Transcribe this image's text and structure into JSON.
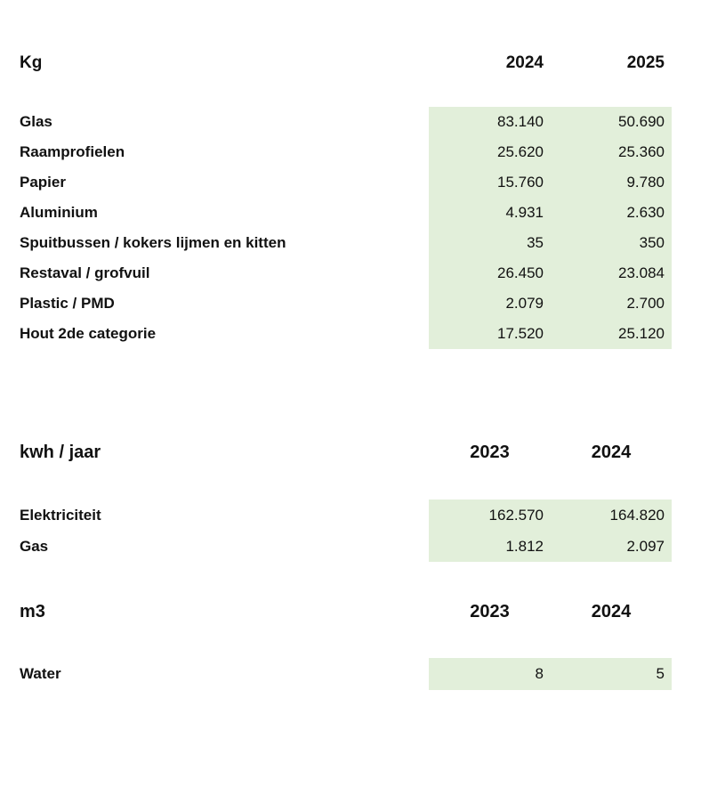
{
  "colors": {
    "highlight": "#e2efda"
  },
  "tables": [
    {
      "unit": "Kg",
      "col1": "2024",
      "col2": "2025",
      "header_align": "right",
      "rows": [
        {
          "label": "Glas",
          "v1": "83.140",
          "v2": "50.690"
        },
        {
          "label": "Raamprofielen",
          "v1": "25.620",
          "v2": "25.360"
        },
        {
          "label": "Papier",
          "v1": "15.760",
          "v2": "9.780"
        },
        {
          "label": "Aluminium",
          "v1": "4.931",
          "v2": "2.630"
        },
        {
          "label": "Spuitbussen / kokers lijmen en kitten",
          "v1": "35",
          "v2": "350"
        },
        {
          "label": "Restaval / grofvuil",
          "v1": "26.450",
          "v2": "23.084"
        },
        {
          "label": "Plastic / PMD",
          "v1": "2.079",
          "v2": "2.700"
        },
        {
          "label": "Hout 2de categorie",
          "v1": "17.520",
          "v2": "25.120"
        }
      ]
    },
    {
      "unit": "kwh / jaar",
      "col1": "2023",
      "col2": "2024",
      "header_align": "center",
      "rows": [
        {
          "label": "Elektriciteit",
          "v1": "162.570",
          "v2": "164.820"
        },
        {
          "label": "Gas",
          "v1": "1.812",
          "v2": "2.097"
        }
      ]
    },
    {
      "unit": "m3",
      "col1": "2023",
      "col2": "2024",
      "header_align": "center",
      "rows": [
        {
          "label": "Water",
          "v1": "8",
          "v2": "5"
        }
      ]
    }
  ]
}
